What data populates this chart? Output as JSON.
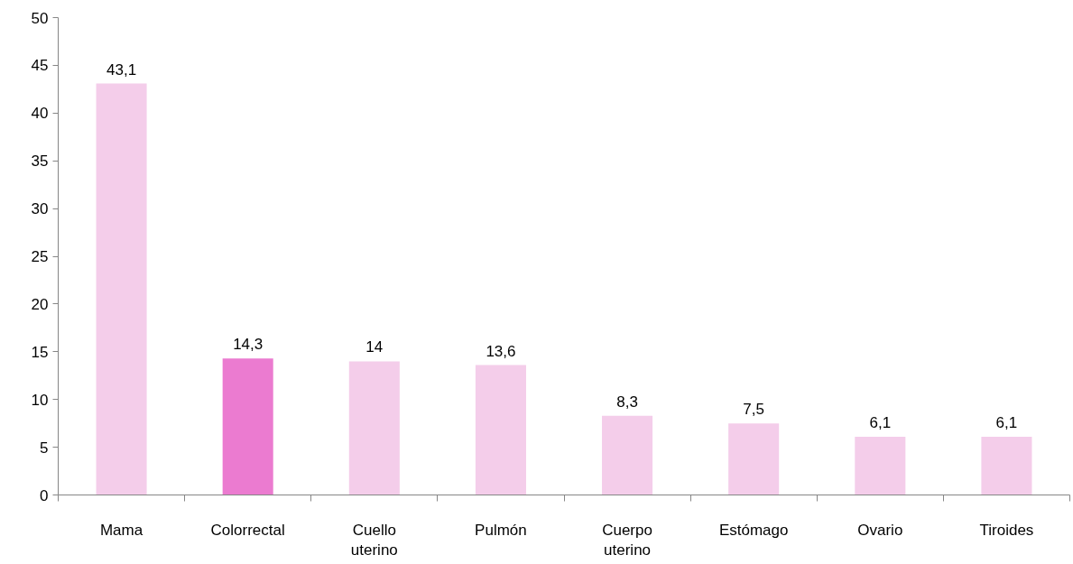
{
  "chart_data": {
    "type": "bar",
    "categories": [
      "Mama",
      "Colorrectal",
      "Cuello uterino",
      "Pulmón",
      "Cuerpo uterino",
      "Estómago",
      "Ovario",
      "Tiroides"
    ],
    "values": [
      43.1,
      14.3,
      14,
      13.6,
      8.3,
      7.5,
      6.1,
      6.1
    ],
    "value_labels": [
      "43,1",
      "14,3",
      "14",
      "13,6",
      "8,3",
      "7,5",
      "6,1",
      "6,1"
    ],
    "colors": [
      "#f4cdea",
      "#eb7bd0",
      "#f4cdea",
      "#f4cdea",
      "#f4cdea",
      "#f4cdea",
      "#f4cdea",
      "#f4cdea"
    ],
    "ylim": [
      0,
      50
    ],
    "yticks": [
      0,
      5,
      10,
      15,
      20,
      25,
      30,
      35,
      40,
      45,
      50
    ]
  }
}
